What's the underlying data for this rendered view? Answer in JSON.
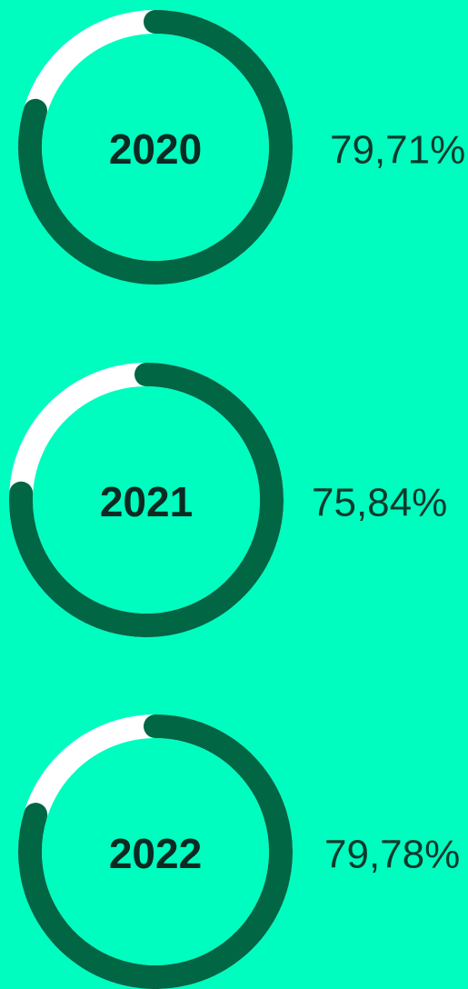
{
  "chart_data": [
    {
      "type": "ring",
      "title": "2020",
      "values": [
        79.71
      ],
      "value_labels": [
        "79,71%"
      ],
      "ylim": [
        0,
        100
      ],
      "color": "#006644",
      "track_color": "#ffffff"
    },
    {
      "type": "ring",
      "title": "2021",
      "values": [
        75.84
      ],
      "value_labels": [
        "75,84%"
      ],
      "ylim": [
        0,
        100
      ],
      "color": "#006644",
      "track_color": "#ffffff"
    },
    {
      "type": "ring",
      "title": "2022",
      "values": [
        79.78
      ],
      "value_labels": [
        "79,78%"
      ],
      "ylim": [
        0,
        100
      ],
      "color": "#006644",
      "track_color": "#ffffff"
    }
  ]
}
